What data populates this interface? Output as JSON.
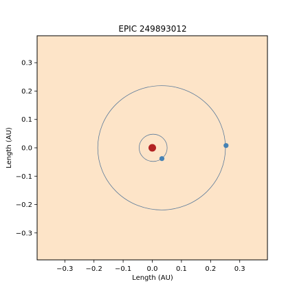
{
  "chart_data": {
    "type": "scatter",
    "title": "EPIC 249893012",
    "xlabel": "Length (AU)",
    "ylabel": "Length (AU)",
    "xlim": [
      -0.395,
      0.395
    ],
    "ylim": [
      -0.395,
      0.395
    ],
    "xticks": [
      -0.3,
      -0.2,
      -0.1,
      0.0,
      0.1,
      0.2,
      0.3
    ],
    "yticks": [
      -0.3,
      -0.2,
      -0.1,
      0.0,
      0.1,
      0.2,
      0.3
    ],
    "xtick_labels": [
      "−0.3",
      "−0.2",
      "−0.1",
      "0.0",
      "0.1",
      "0.2",
      "0.3"
    ],
    "ytick_labels": [
      "−0.3",
      "−0.2",
      "−0.1",
      "0.0",
      "0.1",
      "0.2",
      "0.3"
    ],
    "grid": false,
    "colors": {
      "background": "#fde4c8",
      "star": "#b22222",
      "planet": "#4682b4",
      "orbit": "#5b7a9a"
    },
    "star": {
      "x": 0.0,
      "y": 0.0
    },
    "orbits": [
      {
        "cx": 0.003,
        "cy": 0.0,
        "rx": 0.048,
        "ry": 0.048
      },
      {
        "cx": 0.032,
        "cy": 0.0,
        "rx": 0.219,
        "ry": 0.219
      }
    ],
    "planets": [
      {
        "x": 0.033,
        "y": -0.038
      },
      {
        "x": 0.253,
        "y": 0.008
      }
    ]
  }
}
